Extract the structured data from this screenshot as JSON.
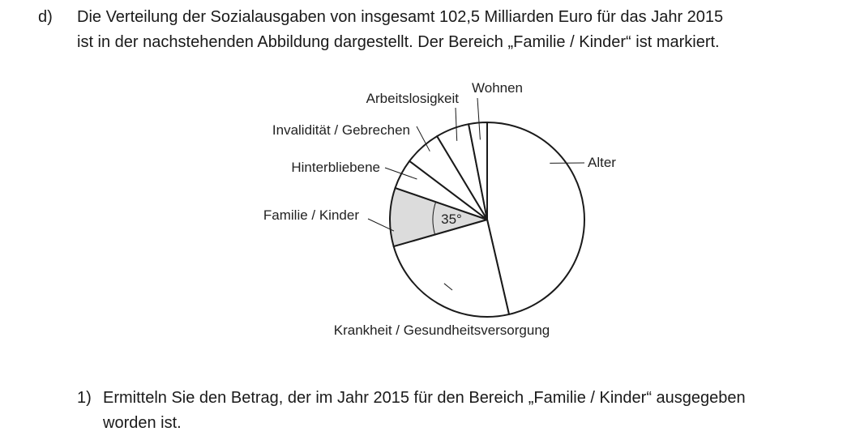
{
  "part": {
    "label": "d)",
    "lines": [
      "Die Verteilung der Sozialausgaben von insgesamt 102,5 Milliarden Euro für das Jahr 2015",
      "ist in der nachstehenden Abbildung dargestellt. Der Bereich „Familie / Kinder“ ist markiert."
    ]
  },
  "chart_data": {
    "type": "pie",
    "title": "",
    "highlighted": "Familie / Kinder",
    "angle_label": "35°",
    "slices": [
      {
        "label": "Alter",
        "degrees": 167
      },
      {
        "label": "Krankheit / Gesundheitsversorgung",
        "degrees": 87
      },
      {
        "label": "Familie / Kinder",
        "degrees": 35
      },
      {
        "label": "Hinterbliebene",
        "degrees": 18
      },
      {
        "label": "Invalidität / Gebrechen",
        "degrees": 22
      },
      {
        "label": "Arbeitslosigkeit",
        "degrees": 20
      },
      {
        "label": "Wohnen",
        "degrees": 11
      }
    ],
    "colors": {
      "highlight": "#dcdcdc",
      "fill": "#ffffff",
      "stroke": "#1a1a1a"
    }
  },
  "task": {
    "label": "1)",
    "lines": [
      "Ermitteln Sie den Betrag, der im Jahr 2015 für den Bereich „Familie / Kinder“ ausgegeben",
      "worden ist."
    ]
  }
}
